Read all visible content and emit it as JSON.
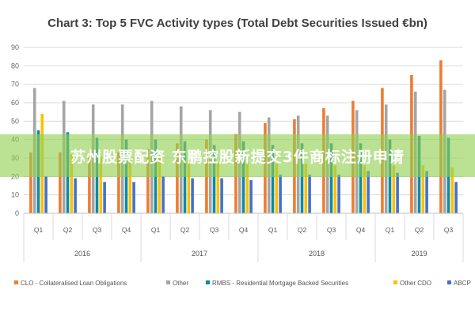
{
  "chart_data": {
    "type": "bar",
    "title": "Chart 3: Top 5 FVC Activity types (Total Debt Securities Issued €bn)",
    "xlabel": "",
    "ylabel": "",
    "ylim": [
      0,
      90
    ],
    "yticks": [
      0,
      10,
      20,
      30,
      40,
      50,
      60,
      70,
      80,
      90
    ],
    "grid": true,
    "legend_position": "bottom",
    "categories": [
      "Q1",
      "Q2",
      "Q3",
      "Q4",
      "Q1",
      "Q2",
      "Q3",
      "Q4",
      "Q1",
      "Q2",
      "Q3",
      "Q4",
      "Q1",
      "Q2",
      "Q3"
    ],
    "groups": [
      {
        "label": "2016",
        "count": 4
      },
      {
        "label": "2017",
        "count": 4
      },
      {
        "label": "2018",
        "count": 4
      },
      {
        "label": "2019",
        "count": 3
      }
    ],
    "series": [
      {
        "name": "CLO - Collateralised Loan Obligations",
        "color": "#ed7d31",
        "values": [
          33,
          33,
          33,
          33,
          35,
          38,
          40,
          43,
          49,
          51,
          57,
          61,
          68,
          75,
          83
        ]
      },
      {
        "name": "Other",
        "color": "#a5a5a5",
        "values": [
          68,
          61,
          59,
          59,
          61,
          58,
          56,
          55,
          52,
          53,
          53,
          56,
          59,
          66,
          67
        ]
      },
      {
        "name": "RMBS - Residential Mortgage Backed Securities",
        "color": "#0e8aa4",
        "values": [
          45,
          44,
          41,
          40,
          40,
          39,
          37,
          39,
          37,
          38,
          38,
          38,
          40,
          42,
          41
        ]
      },
      {
        "name": "Other CDO",
        "color": "#ffc000",
        "values": [
          54,
          32,
          31,
          30,
          30,
          29,
          28,
          28,
          27,
          27,
          26,
          26,
          26,
          26,
          25
        ]
      },
      {
        "name": "ABCP",
        "color": "#4472c4",
        "values": [
          20,
          19,
          17,
          17,
          20,
          19,
          19,
          18,
          21,
          21,
          21,
          23,
          22,
          23,
          17
        ]
      }
    ]
  },
  "overlay": {
    "banner_text": "苏州股票配资 东鹏控股新提交3件商标注册申请",
    "banner_color": "#92d050"
  }
}
